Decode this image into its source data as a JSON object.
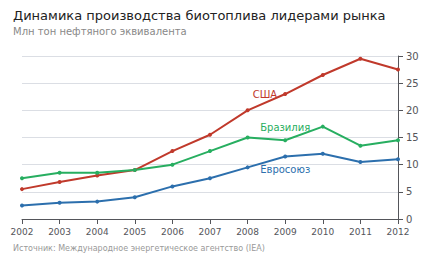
{
  "chart_data": {
    "type": "line",
    "title": "Динамика производства биотоплива лидерами рынка",
    "subtitle": "Млн тон нефтяного эквивалента",
    "source": "Источник: Международное энергетическое агентство (IEA)",
    "x": [
      2002,
      2003,
      2004,
      2005,
      2006,
      2007,
      2008,
      2009,
      2010,
      2011,
      2012
    ],
    "series": [
      {
        "name": "США",
        "color": "#c0392b",
        "values": [
          5.5,
          6.8,
          8.0,
          9.0,
          12.5,
          15.5,
          20.0,
          23.0,
          26.5,
          29.5,
          27.5
        ]
      },
      {
        "name": "Бразилия",
        "color": "#27ae60",
        "values": [
          7.5,
          8.5,
          8.5,
          9.0,
          10.0,
          12.5,
          15.0,
          14.5,
          17.0,
          13.5,
          14.5
        ]
      },
      {
        "name": "Евросоюз",
        "color": "#2c6fad",
        "values": [
          2.5,
          3.0,
          3.2,
          4.0,
          6.0,
          7.5,
          9.5,
          11.5,
          12.0,
          10.5,
          11.0
        ]
      }
    ],
    "xlim": [
      2002,
      2012
    ],
    "xticks": [
      2002,
      2003,
      2004,
      2005,
      2006,
      2007,
      2008,
      2009,
      2010,
      2011,
      2012
    ],
    "ylim": [
      0,
      30
    ],
    "yticks": [
      0,
      5,
      10,
      15,
      20,
      25,
      30
    ],
    "grid": true,
    "marker": "circle"
  }
}
